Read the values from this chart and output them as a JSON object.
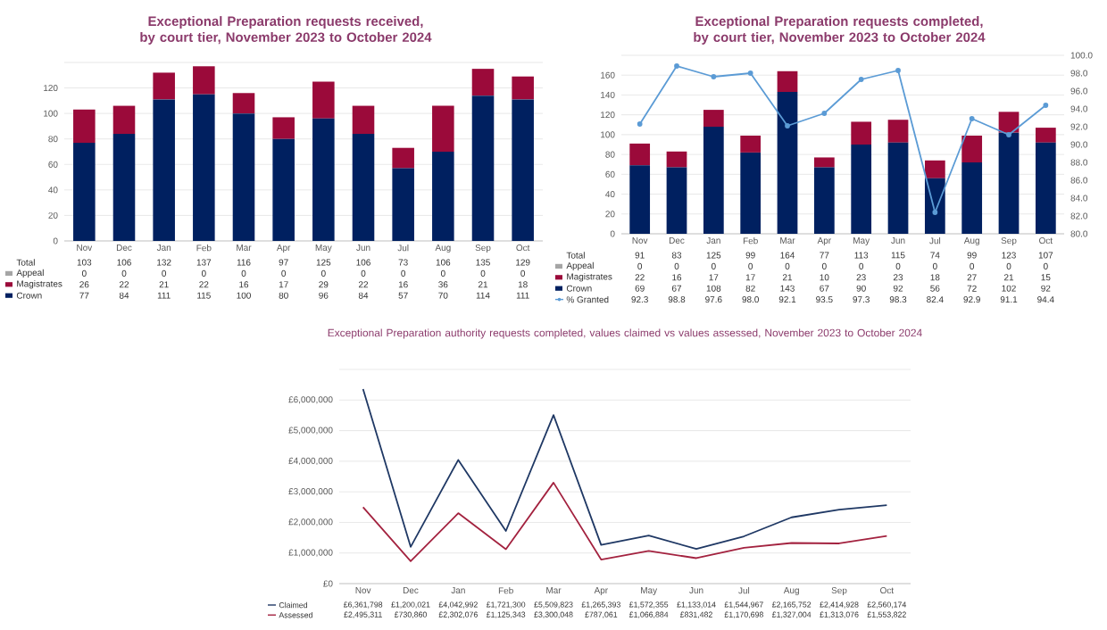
{
  "chart_data": [
    {
      "type": "bar",
      "title": "Exceptional Preparation requests received, by court tier, November 2023 to October 2024",
      "stacked": true,
      "grid": "y",
      "legend": "bottom",
      "data_labels": true,
      "categories": [
        "Nov",
        "Dec",
        "Jan",
        "Feb",
        "Mar",
        "Apr",
        "May",
        "Jun",
        "Jul",
        "Aug",
        "Sep",
        "Oct"
      ],
      "series": [
        {
          "name": "Crown",
          "color": "#002060",
          "values": [
            77,
            84,
            111,
            115,
            100,
            80,
            96,
            84,
            57,
            70,
            114,
            111
          ]
        },
        {
          "name": "Magistrates",
          "color": "#9b0a3a",
          "values": [
            26,
            22,
            21,
            22,
            16,
            17,
            29,
            22,
            16,
            36,
            21,
            18
          ]
        },
        {
          "name": "Appeal",
          "color": "#a5a5a5",
          "values": [
            0,
            0,
            0,
            0,
            0,
            0,
            0,
            0,
            0,
            0,
            0,
            0
          ]
        }
      ],
      "totals": [
        "103",
        "106",
        "132",
        "137",
        "116",
        "97",
        "125",
        "106",
        "73",
        "106",
        "135",
        "129"
      ],
      "annotations": [
        "Total"
      ],
      "ylim": [
        0,
        140
      ],
      "yticks": [
        0,
        20,
        40,
        60,
        80,
        100,
        120,
        {
          "value": 140,
          "label": null
        }
      ]
    },
    {
      "type": "bar",
      "title": "Exceptional Preparation requests completed, by court tier, November 2023 to October 2024",
      "stacked": true,
      "grid": "y",
      "legend": "bottom",
      "data_labels": true,
      "marker": "circle",
      "categories": [
        "Nov",
        "Dec",
        "Jan",
        "Feb",
        "Mar",
        "Apr",
        "May",
        "Jun",
        "Jul",
        "Aug",
        "Sep",
        "Oct"
      ],
      "series": [
        {
          "name": "Crown",
          "color": "#002060",
          "values": [
            69,
            67,
            108,
            82,
            143,
            67,
            90,
            92,
            56,
            72,
            102,
            92
          ]
        },
        {
          "name": "Magistrates",
          "color": "#9b0a3a",
          "values": [
            22,
            16,
            17,
            17,
            21,
            10,
            23,
            23,
            18,
            27,
            21,
            15
          ]
        },
        {
          "name": "Appeal",
          "color": "#a5a5a5",
          "values": [
            0,
            0,
            0,
            0,
            0,
            0,
            0,
            0,
            0,
            0,
            0,
            0
          ]
        },
        {
          "name": "% Granted",
          "type": "line",
          "axis": "y2",
          "color": "#5b9bd5",
          "values": [
            92.3,
            98.8,
            97.6,
            98.0,
            92.1,
            93.5,
            97.3,
            98.3,
            82.4,
            92.9,
            91.1,
            94.4
          ],
          "value_labels": [
            "92.3",
            "98.8",
            "97.6",
            "98.0",
            "92.1",
            "93.5",
            "97.3",
            "98.3",
            "82.4",
            "92.9",
            "91.1",
            "94.4"
          ]
        }
      ],
      "totals": [
        "91",
        "83",
        "125",
        "99",
        "164",
        "77",
        "113",
        "115",
        "74",
        "99",
        "123",
        "107"
      ],
      "annotations": [
        "Total"
      ],
      "ylim": [
        0,
        180
      ],
      "yticks": [
        0,
        20,
        40,
        60,
        80,
        100,
        120,
        140,
        160,
        {
          "value": 180,
          "label": null
        }
      ],
      "y2lim": [
        80,
        100
      ],
      "y2ticks": [
        {
          "value": 80,
          "label": "80.0"
        },
        {
          "value": 82,
          "label": "82.0"
        },
        {
          "value": 84,
          "label": "84.0"
        },
        {
          "value": 86,
          "label": "86.0"
        },
        {
          "value": 88,
          "label": "88.0"
        },
        {
          "value": 90,
          "label": "90.0"
        },
        {
          "value": 92,
          "label": "92.0"
        },
        {
          "value": 94,
          "label": "94.0"
        },
        {
          "value": 96,
          "label": "96.0"
        },
        {
          "value": 98,
          "label": "98.0"
        },
        {
          "value": 100,
          "label": "100.0"
        }
      ]
    },
    {
      "type": "line",
      "title": "Exceptional Preparation authority requests completed, values claimed vs values assessed, November 2023 to October 2024",
      "grid": "y",
      "legend": "bottom",
      "categories": [
        "Nov",
        "Dec",
        "Jan",
        "Feb",
        "Mar",
        "Apr",
        "May",
        "Jun",
        "Jul",
        "Aug",
        "Sep",
        "Oct"
      ],
      "series": [
        {
          "name": "Claimed",
          "color": "#1f3864",
          "values": [
            6361798,
            1200021,
            4042992,
            1721300,
            5509823,
            1265393,
            1572355,
            1133014,
            1544967,
            2165752,
            2414928,
            2560174
          ],
          "value_labels": [
            "£6,361,798",
            "£1,200,021",
            "£4,042,992",
            "£1,721,300",
            "£5,509,823",
            "£1,265,393",
            "£1,572,355",
            "£1,133,014",
            "£1,544,967",
            "£2,165,752",
            "£2,414,928",
            "£2,560,174"
          ]
        },
        {
          "name": "Assessed",
          "color": "#a3223f",
          "values": [
            2495311,
            730860,
            2302076,
            1125343,
            3300048,
            787061,
            1066884,
            831482,
            1170698,
            1327004,
            1313076,
            1553822
          ],
          "value_labels": [
            "£2,495,311",
            "£730,860",
            "£2,302,076",
            "£1,125,343",
            "£3,300,048",
            "£787,061",
            "£1,066,884",
            "£831,482",
            "£1,170,698",
            "£1,327,004",
            "£1,313,076",
            "£1,553,822"
          ]
        }
      ],
      "ylim": [
        0,
        7000000
      ],
      "yticks": [
        {
          "value": 0,
          "label": "£0"
        },
        {
          "value": 1000000,
          "label": "£1,000,000"
        },
        {
          "value": 2000000,
          "label": "£2,000,000"
        },
        {
          "value": 3000000,
          "label": "£3,000,000"
        },
        {
          "value": 4000000,
          "label": "£4,000,000"
        },
        {
          "value": 5000000,
          "label": "£5,000,000"
        },
        {
          "value": 6000000,
          "label": "£6,000,000"
        },
        {
          "value": 7000000,
          "label": null
        }
      ]
    }
  ]
}
